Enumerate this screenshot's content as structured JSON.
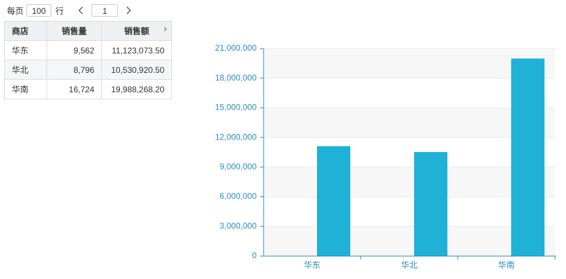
{
  "pager": {
    "prefix": "每页",
    "page_size": "100",
    "suffix": "行",
    "page": "1"
  },
  "table": {
    "header": [
      "商店",
      "销售量",
      "销售额"
    ],
    "rows": [
      [
        "华东",
        "9,562",
        "11,123,073.50"
      ],
      [
        "华北",
        "8,796",
        "10,530,920.50"
      ],
      [
        "华南",
        "16,724",
        "19,988,268.20"
      ]
    ]
  },
  "chart_data": {
    "type": "bar",
    "categories": [
      "华东",
      "华北",
      "华南"
    ],
    "series": [
      {
        "color": "#1fb1d6",
        "values": [
          9562,
          8796,
          16724
        ]
      },
      {
        "color": "#1fb1d6",
        "values": [
          11123073.5,
          10530920.5,
          19988268.2
        ]
      }
    ],
    "ylim": [
      0,
      21000000
    ],
    "yticks": [
      0,
      {
        "value": 3000000,
        "label": "3,000,000"
      },
      {
        "value": 6000000,
        "label": "6,000,000"
      },
      {
        "value": 9000000,
        "label": "9,000,000"
      },
      {
        "value": 12000000,
        "label": "12,000,000"
      },
      {
        "value": 15000000,
        "label": "15,000,000"
      },
      {
        "value": 18000000,
        "label": "18,000,000"
      },
      {
        "value": 21000000,
        "label": "21,000,000"
      }
    ],
    "grid": true
  }
}
